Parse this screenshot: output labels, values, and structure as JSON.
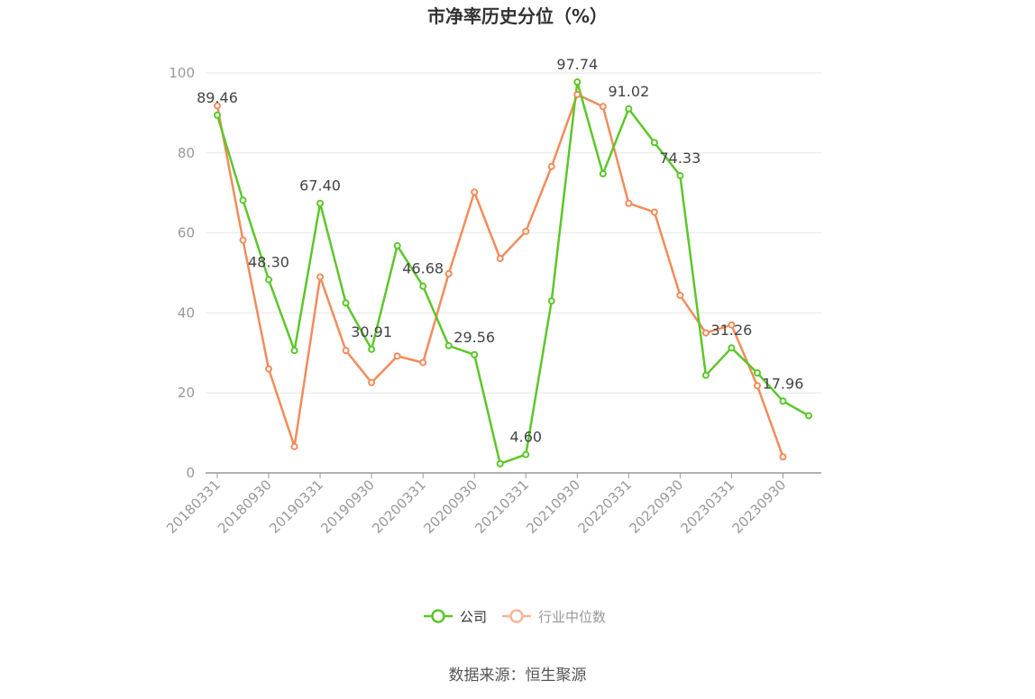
{
  "chart_data": {
    "type": "line",
    "title": "市净率历史分位（%）",
    "xlabel": "",
    "ylabel": "",
    "ylim": [
      0,
      100
    ],
    "yticks": [
      "0",
      "20",
      "40",
      "60",
      "80",
      "100"
    ],
    "x": [
      "20180331",
      "20180630",
      "20180930",
      "20181231",
      "20190331",
      "20190630",
      "20190930",
      "20191231",
      "20200331",
      "20200630",
      "20200930",
      "20201231",
      "20210331",
      "20210630",
      "20210930",
      "20211231",
      "20220331",
      "20220630",
      "20220930",
      "20221231",
      "20230331",
      "20230630",
      "20230930",
      "20231231"
    ],
    "xtick_labels": [
      "20180331",
      "20180930",
      "20190331",
      "20190930",
      "20200331",
      "20200930",
      "20210331",
      "20210930",
      "20220331",
      "20220930",
      "20230331",
      "20230930"
    ],
    "grid": true,
    "legend_position": "bottom",
    "series": [
      {
        "name": "公司",
        "color": "#5cc72a",
        "values": [
          89.46,
          68.2,
          48.3,
          30.6,
          67.4,
          42.5,
          30.91,
          56.8,
          46.68,
          31.8,
          29.56,
          2.3,
          4.6,
          43.0,
          97.74,
          74.8,
          91.02,
          82.6,
          74.33,
          24.4,
          31.26,
          25.0,
          17.96,
          14.3
        ],
        "labels": {
          "0": "89.46",
          "2": "48.30",
          "4": "67.40",
          "6": "30.91",
          "8": "46.68",
          "10": "29.56",
          "12": "4.60",
          "14": "97.74",
          "16": "91.02",
          "18": "74.33",
          "20": "31.26",
          "22": "17.96"
        }
      },
      {
        "name": "行业中位数",
        "color": "#f28c5a",
        "values": [
          91.8,
          58.2,
          26.0,
          6.6,
          49.0,
          30.6,
          22.6,
          29.2,
          27.6,
          49.8,
          70.2,
          53.6,
          60.4,
          76.6,
          94.6,
          91.6,
          67.4,
          65.2,
          44.4,
          35.0,
          37.0,
          21.8,
          4.0,
          null
        ]
      }
    ]
  },
  "source": "数据来源：恒生聚源"
}
